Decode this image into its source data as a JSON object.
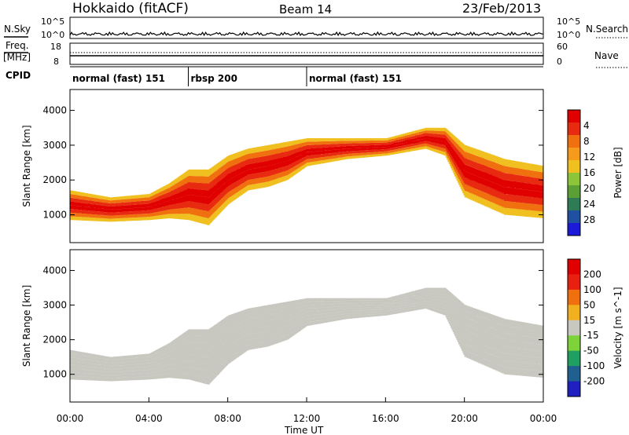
{
  "header": {
    "title": "Hokkaido (fitACF)",
    "beam": "Beam 14",
    "date": "23/Feb/2013"
  },
  "noise_panel": {
    "left_label": "N.Sky",
    "right_label": "N.Search",
    "left_ticks": [
      "10^5",
      "10^0"
    ],
    "right_ticks": [
      "10^5",
      "10^0"
    ]
  },
  "freq_panel": {
    "left_label_1": "Freq.",
    "left_label_2": "[MHz]",
    "right_label": "Nave",
    "left_ticks": [
      "18",
      "8"
    ],
    "right_ticks": [
      "60",
      "0"
    ]
  },
  "cpid": {
    "label": "CPID",
    "segments": [
      {
        "name": "normal (fast) 151",
        "start_hour": 0,
        "end_hour": 6
      },
      {
        "name": "rbsp 200",
        "start_hour": 6,
        "end_hour": 12
      },
      {
        "name": "normal (fast) 151",
        "start_hour": 12,
        "end_hour": 24
      }
    ]
  },
  "x_axis": {
    "label": "Time UT",
    "ticks": [
      "00:00",
      "04:00",
      "08:00",
      "12:00",
      "16:00",
      "20:00",
      "00:00"
    ],
    "range_hours": [
      0,
      24
    ]
  },
  "chart_data": [
    {
      "type": "heatmap",
      "title": "Power",
      "ylabel": "Slant Range [km]",
      "yticks": [
        "1000",
        "2000",
        "3000",
        "4000"
      ],
      "ylim": [
        200,
        4600
      ],
      "colorbar": {
        "label": "Power [dB]",
        "ticks": [
          "4",
          "8",
          "12",
          "16",
          "20",
          "24",
          "28"
        ],
        "range": [
          0,
          30
        ],
        "colors": [
          "#1a1ad8",
          "#2050a0",
          "#2e7b55",
          "#5aa035",
          "#8cc43a",
          "#f0c020",
          "#f59a1a",
          "#f07010",
          "#e82a10",
          "#e00000"
        ]
      },
      "bands": [
        {
          "hours": [
            0,
            2,
            4,
            5,
            6,
            7,
            8,
            9,
            10,
            11,
            12,
            14,
            16,
            18,
            19,
            20,
            22,
            24
          ],
          "lower_km": [
            850,
            800,
            850,
            900,
            850,
            700,
            1300,
            1700,
            1800,
            2000,
            2400,
            2600,
            2700,
            2900,
            2700,
            1500,
            1000,
            900
          ],
          "upper_km": [
            1700,
            1500,
            1600,
            1900,
            2300,
            2300,
            2700,
            2900,
            3000,
            3100,
            3200,
            3200,
            3200,
            3500,
            3500,
            3000,
            2600,
            2400
          ]
        }
      ]
    },
    {
      "type": "heatmap",
      "title": "Velocity",
      "ylabel": "Slant Range [km]",
      "yticks": [
        "1000",
        "2000",
        "3000",
        "4000"
      ],
      "ylim": [
        200,
        4600
      ],
      "colorbar": {
        "label": "Velocity [m s^-1]",
        "ticks": [
          "200",
          "100",
          "50",
          "15",
          "-15",
          "-50",
          "-100",
          "-200"
        ],
        "range": [
          -250,
          250
        ],
        "colors": [
          "#2020c0",
          "#206090",
          "#20a060",
          "#7ed23a",
          "#c8c8c0",
          "#f0b020",
          "#f07010",
          "#e82010",
          "#e00000"
        ]
      },
      "bands": [
        {
          "hours": [
            0,
            2,
            4,
            5,
            6,
            7,
            8,
            9,
            10,
            11,
            12,
            14,
            16,
            18,
            19,
            20,
            22,
            24
          ],
          "lower_km": [
            850,
            800,
            850,
            900,
            850,
            700,
            1300,
            1700,
            1800,
            2000,
            2400,
            2600,
            2700,
            2900,
            2700,
            1500,
            1000,
            900
          ],
          "upper_km": [
            1700,
            1500,
            1600,
            1900,
            2300,
            2300,
            2700,
            2900,
            3000,
            3100,
            3200,
            3200,
            3200,
            3500,
            3500,
            3000,
            2600,
            2400
          ]
        }
      ]
    }
  ]
}
